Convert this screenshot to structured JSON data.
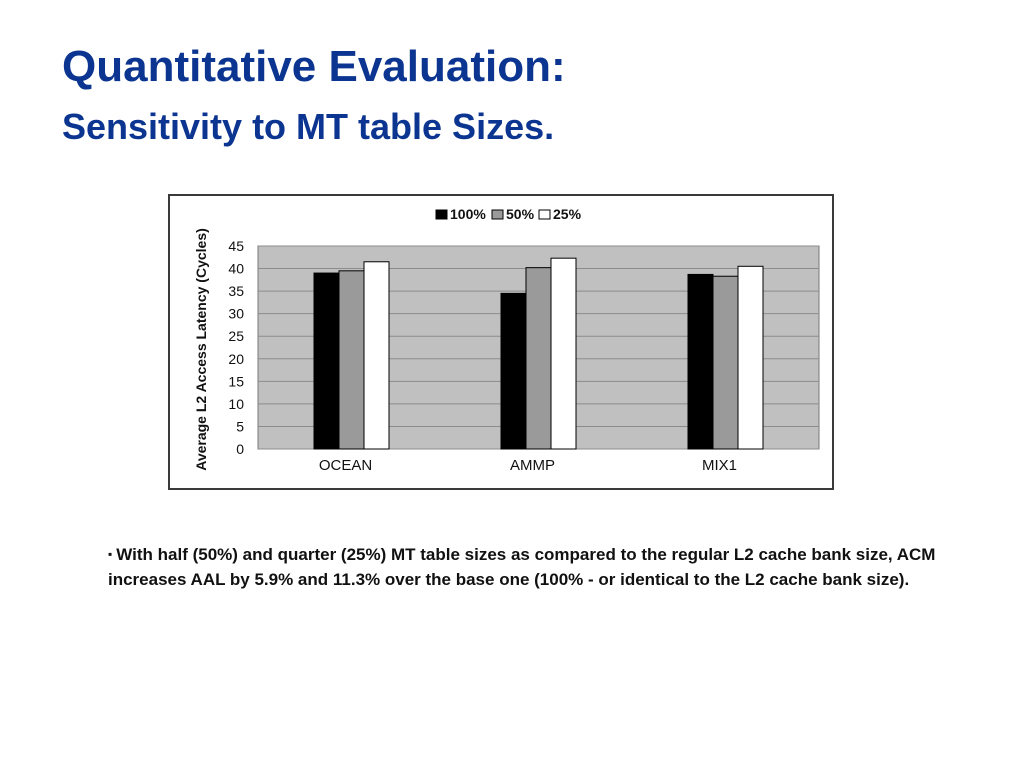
{
  "slide": {
    "title": "Quantitative Evaluation:",
    "subtitle": "Sensitivity to MT table Sizes.",
    "bullet_symbol": "▪",
    "caption": "With half (50%) and quarter (25%) MT table sizes as compared to the regular L2 cache bank size, ACM increases AAL by 5.9% and 11.3% over the base one (100% - or identical to the L2 cache bank size)."
  },
  "chart_data": {
    "type": "bar",
    "categories": [
      "OCEAN",
      "AMMP",
      "MIX1"
    ],
    "series": [
      {
        "name": "100%",
        "values": [
          39,
          34.5,
          38.7
        ],
        "color": "#000000"
      },
      {
        "name": "50%",
        "values": [
          39.5,
          40.2,
          38.3
        ],
        "color": "#9a9a9a"
      },
      {
        "name": "25%",
        "values": [
          41.5,
          42.3,
          40.5
        ],
        "color": "#ffffff"
      }
    ],
    "ylabel": "Average L2 Access Latency (Cycles)",
    "ylim": [
      0,
      45
    ],
    "yticks": [
      0,
      5,
      10,
      15,
      20,
      25,
      30,
      35,
      40,
      45
    ],
    "grid": true,
    "legend": "top",
    "plot_background": "#c0c0c0"
  }
}
